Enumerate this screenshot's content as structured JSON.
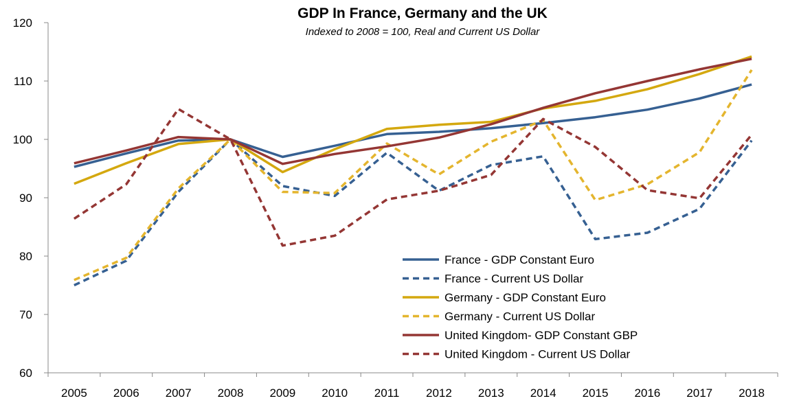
{
  "chart_data": {
    "type": "line",
    "title": "GDP In France, Germany and the UK",
    "subtitle": "Indexed to 2008 = 100, Real and Current US Dollar",
    "xlabel": "",
    "ylabel": "",
    "categories": [
      "2005",
      "2006",
      "2007",
      "2008",
      "2009",
      "2010",
      "2011",
      "2012",
      "2013",
      "2014",
      "2015",
      "2016",
      "2017",
      "2018"
    ],
    "ylim": [
      60,
      120
    ],
    "yticks": [
      "60",
      "70",
      "80",
      "90",
      "100",
      "110",
      "120"
    ],
    "grid": false,
    "legend_position": "bottom-center",
    "series": [
      {
        "name": "France - GDP Constant Euro",
        "color": "#366092",
        "style": "solid",
        "values": [
          95.3,
          97.6,
          99.8,
          100.0,
          97.0,
          98.9,
          100.9,
          101.3,
          101.9,
          102.8,
          103.8,
          105.1,
          107.0,
          109.4
        ]
      },
      {
        "name": "France - Current US Dollar",
        "color": "#366092",
        "style": "dashed",
        "values": [
          75.0,
          79.2,
          91.0,
          100.0,
          92.0,
          90.3,
          97.7,
          91.2,
          95.6,
          97.1,
          82.9,
          84.0,
          88.1,
          99.8
        ]
      },
      {
        "name": "Germany - GDP Constant Euro",
        "color": "#D4A80F",
        "style": "solid",
        "values": [
          92.4,
          95.9,
          99.2,
          100.0,
          94.4,
          98.3,
          101.8,
          102.5,
          103.0,
          105.3,
          106.6,
          108.6,
          111.2,
          114.2
        ]
      },
      {
        "name": "Germany - Current US Dollar",
        "color": "#E4B52E",
        "style": "dashed",
        "values": [
          75.9,
          79.7,
          91.6,
          100.0,
          91.0,
          90.8,
          99.3,
          94.0,
          99.6,
          103.3,
          89.6,
          92.3,
          97.8,
          111.9
        ]
      },
      {
        "name": "United Kingdom- GDP Constant GBP",
        "color": "#943634",
        "style": "solid",
        "values": [
          95.9,
          98.1,
          100.4,
          100.0,
          95.8,
          97.5,
          98.8,
          100.3,
          102.6,
          105.4,
          107.9,
          110.0,
          112.0,
          113.8
        ]
      },
      {
        "name": "United Kingdom - Current US Dollar",
        "color": "#943634",
        "style": "dashed",
        "values": [
          86.4,
          92.3,
          105.2,
          100.0,
          81.8,
          83.5,
          89.7,
          91.2,
          93.9,
          103.5,
          98.7,
          91.3,
          89.9,
          100.8
        ]
      }
    ]
  }
}
